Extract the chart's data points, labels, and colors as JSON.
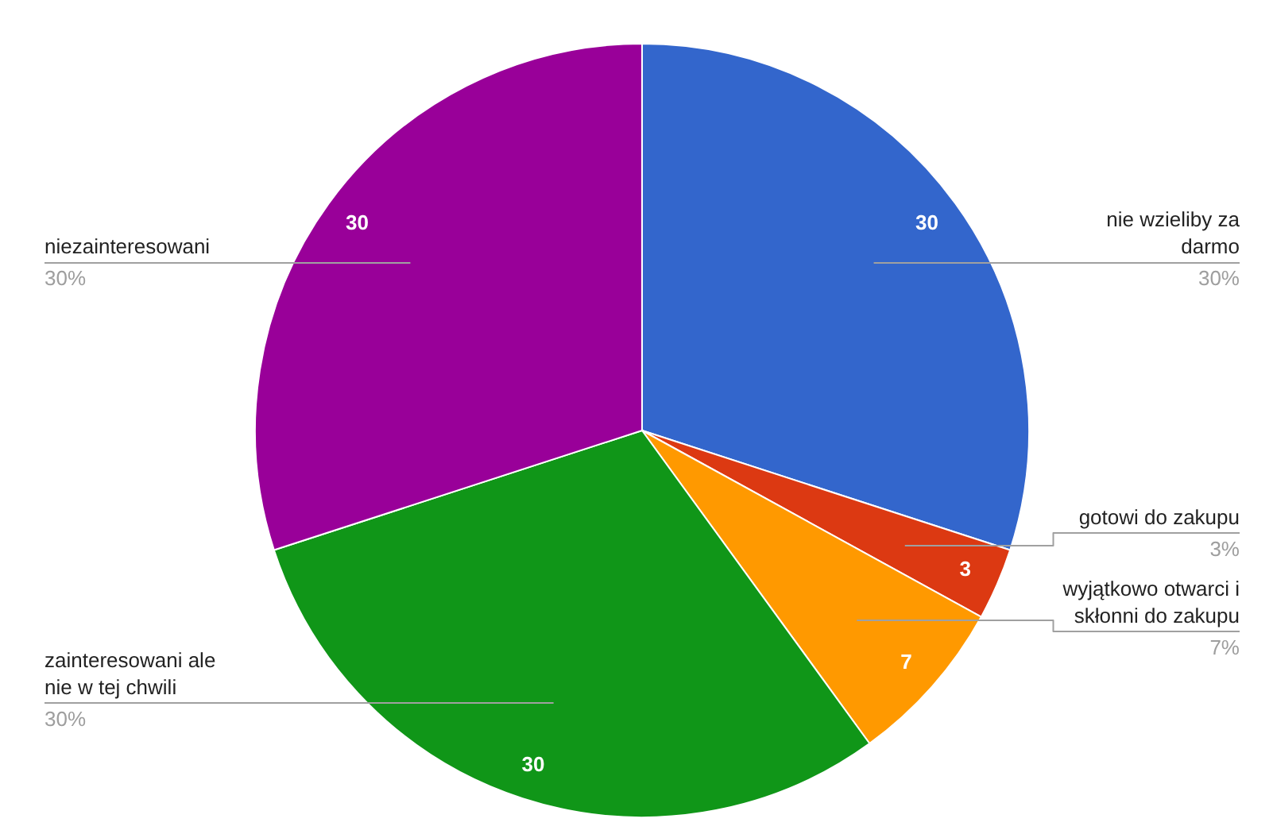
{
  "chart_data": {
    "type": "pie",
    "categories": [
      "nie wzieliby za darmo",
      "gotowi do zakupu",
      "wyjątkowo otwarci i skłonni do zakupu",
      "zainteresowani ale nie w tej chwili",
      "niezainteresowani"
    ],
    "values": [
      30,
      3,
      7,
      30,
      30
    ],
    "colors": [
      "#3366cc",
      "#dc3912",
      "#ff9900",
      "#109618",
      "#990099"
    ],
    "data_labels": true,
    "annotations": [
      "30%",
      "3%",
      "7%",
      "30%",
      "30%"
    ]
  }
}
